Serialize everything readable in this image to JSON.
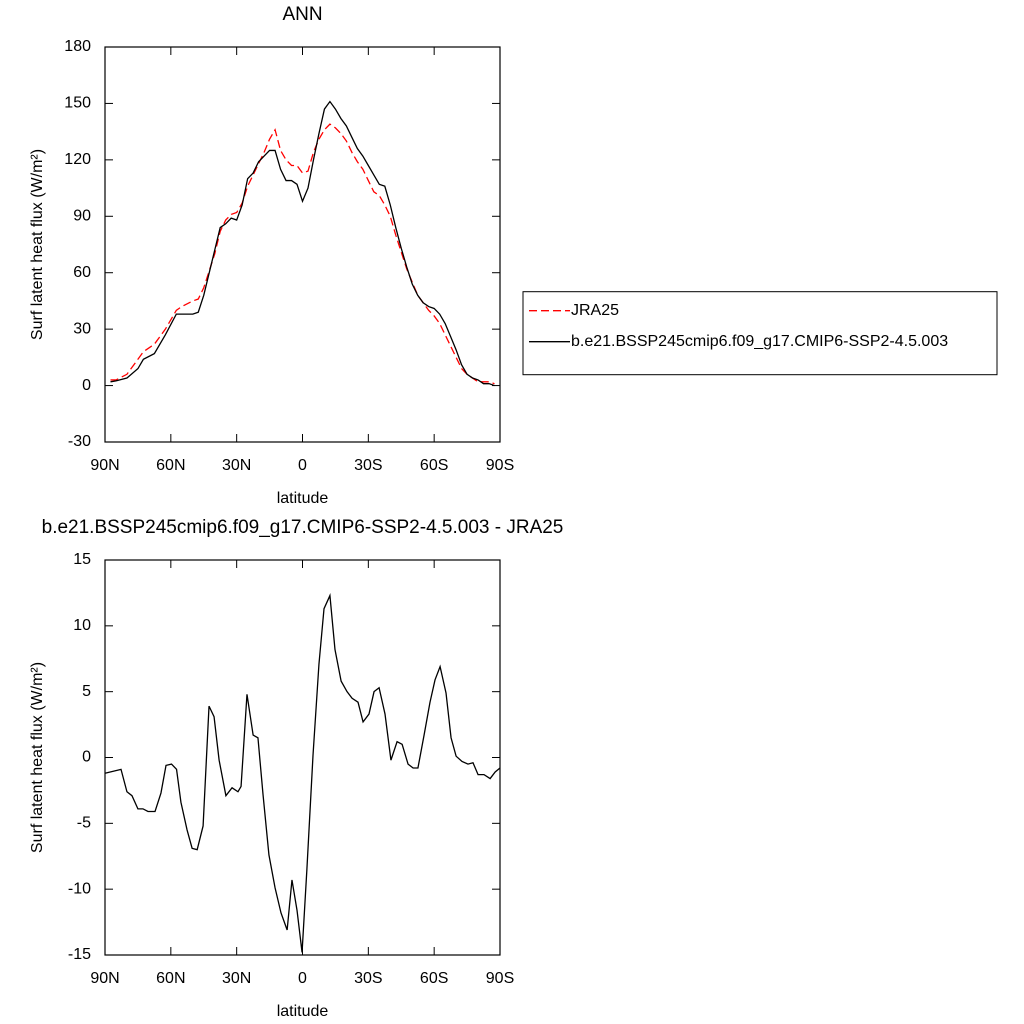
{
  "chart_data": [
    {
      "type": "line",
      "title": "ANN",
      "x_label": "latitude",
      "y_label": "Surf latent heat flux (W/m²)",
      "xlim": [
        90,
        -90
      ],
      "xticks": [
        {
          "value": 90,
          "label": "90N"
        },
        {
          "value": 60,
          "label": "60N"
        },
        {
          "value": 30,
          "label": "30N"
        },
        0,
        {
          "value": -30,
          "label": "30S"
        },
        {
          "value": -60,
          "label": "60S"
        },
        {
          "value": -90,
          "label": "90S"
        }
      ],
      "ylim": [
        -30,
        180
      ],
      "yticks": [
        -30,
        0,
        30,
        60,
        90,
        120,
        150,
        180
      ],
      "legend": "right",
      "x": [
        87.5,
        85,
        80,
        75,
        72.5,
        67.5,
        62.5,
        57.5,
        55,
        50,
        47.5,
        45,
        40,
        37.5,
        35,
        32.5,
        30,
        27.5,
        25,
        22.5,
        20,
        17.5,
        15,
        12.5,
        10,
        7.5,
        5,
        2.5,
        0,
        -2.5,
        -5,
        -7.5,
        -10,
        -12.5,
        -15,
        -17.5,
        -20,
        -22.5,
        -25,
        -27.5,
        -30,
        -32.5,
        -35,
        -37.5,
        -40,
        -42.5,
        -45,
        -47.5,
        -50,
        -52.5,
        -55,
        -57.5,
        -60,
        -62.5,
        -65,
        -67.5,
        -70,
        -72.5,
        -75,
        -77.5,
        -80,
        -82.5,
        -85,
        -87.5
      ],
      "series": [
        {
          "name": "JRA25",
          "color": "#ff0000",
          "dashed": true,
          "values": [
            3,
            3,
            6,
            14,
            18,
            22,
            30,
            40,
            42,
            45,
            46,
            52,
            70,
            82,
            88,
            91,
            92,
            97,
            106,
            112,
            118,
            124,
            131,
            136,
            125,
            120,
            117,
            117,
            113,
            114,
            124,
            131,
            136,
            139,
            137,
            134,
            130,
            124,
            119,
            115,
            109,
            103,
            101,
            96,
            90,
            80,
            71,
            62,
            55,
            48,
            44,
            40,
            37,
            33,
            27,
            21,
            15,
            9,
            6,
            4,
            2,
            2,
            2,
            1
          ]
        },
        {
          "name": "b.e21.BSSP245cmip6.f09_g17.CMIP6-SSP2-4.5.003",
          "color": "#000000",
          "dashed": false,
          "values": [
            2,
            2.5,
            4,
            9,
            14,
            17,
            27,
            38,
            38,
            38,
            39,
            48,
            72,
            84,
            86,
            89,
            88,
            96,
            110,
            113,
            119,
            122,
            125,
            125,
            115,
            109,
            109,
            107,
            98,
            105,
            120,
            134,
            147,
            151,
            147,
            142,
            138,
            132,
            126,
            122,
            117,
            112,
            107,
            106,
            96,
            84,
            73,
            63,
            54,
            48,
            44,
            42,
            41,
            38,
            33,
            26,
            19,
            11,
            6,
            4,
            3,
            1,
            1,
            0
          ]
        }
      ]
    },
    {
      "type": "line",
      "title": "b.e21.BSSP245cmip6.f09_g17.CMIP6-SSP2-4.5.003 - JRA25",
      "x_label": "latitude",
      "y_label": "Surf latent heat flux (W/m²)",
      "xlim": [
        90,
        -90
      ],
      "xticks": [
        {
          "value": 90,
          "label": "90N"
        },
        {
          "value": 60,
          "label": "60N"
        },
        {
          "value": 30,
          "label": "30N"
        },
        0,
        {
          "value": -30,
          "label": "30S"
        },
        {
          "value": -60,
          "label": "60S"
        },
        {
          "value": -90,
          "label": "90S"
        }
      ],
      "ylim": [
        -15,
        15
      ],
      "yticks": [
        -15,
        -10,
        -5,
        0,
        5,
        10,
        15
      ],
      "x": [
        90,
        82.7,
        80,
        77.7,
        75,
        72.7,
        70.4,
        67.2,
        64.5,
        62.2,
        59.7,
        57.4,
        55.4,
        52.6,
        50.3,
        48,
        45.3,
        42.6,
        40.3,
        38,
        34.9,
        32.1,
        29.4,
        28,
        25.3,
        22.5,
        20.3,
        18,
        15.3,
        12.5,
        9.8,
        7,
        4.8,
        2.5,
        0.2,
        -2,
        -4.8,
        -7.5,
        -9.8,
        -12.5,
        -14.8,
        -17.6,
        -20.3,
        -22.6,
        -25.3,
        -27.6,
        -30.3,
        -32.6,
        -34.9,
        -37.6,
        -40.3,
        -43.1,
        -45.4,
        -48.1,
        -50.4,
        -52.6,
        -55.4,
        -58.1,
        -60.4,
        -62.7,
        -65.4,
        -67.7,
        -70,
        -72.7,
        -75.4,
        -77.7,
        -80,
        -82.7,
        -85.5,
        -87.8,
        -90
      ],
      "series": [
        {
          "color": "#000000",
          "dashed": false,
          "values": [
            -1.2,
            -0.9,
            -2.6,
            -2.9,
            -3.9,
            -3.9,
            -4.1,
            -4.1,
            -2.7,
            -0.6,
            -0.5,
            -0.9,
            -3.4,
            -5.5,
            -6.9,
            -7,
            -5.2,
            3.9,
            3.1,
            -0.2,
            -2.9,
            -2.3,
            -2.6,
            -2.2,
            4.8,
            1.7,
            1.5,
            -2.8,
            -7.4,
            -9.9,
            -11.8,
            -13.1,
            -9.3,
            -11.6,
            -14.8,
            -8.5,
            0.2,
            7.1,
            11.3,
            12.3,
            8.2,
            5.8,
            5,
            4.5,
            4.2,
            2.7,
            3.3,
            5,
            5.3,
            3.3,
            -0.2,
            1.2,
            1,
            -0.5,
            -0.8,
            -0.8,
            1.7,
            4.2,
            5.9,
            6.9,
            4.9,
            1.5,
            0.1,
            -0.3,
            -0.5,
            -0.4,
            -1.3,
            -1.3,
            -1.6,
            -1.1,
            -0.8
          ]
        }
      ]
    }
  ]
}
